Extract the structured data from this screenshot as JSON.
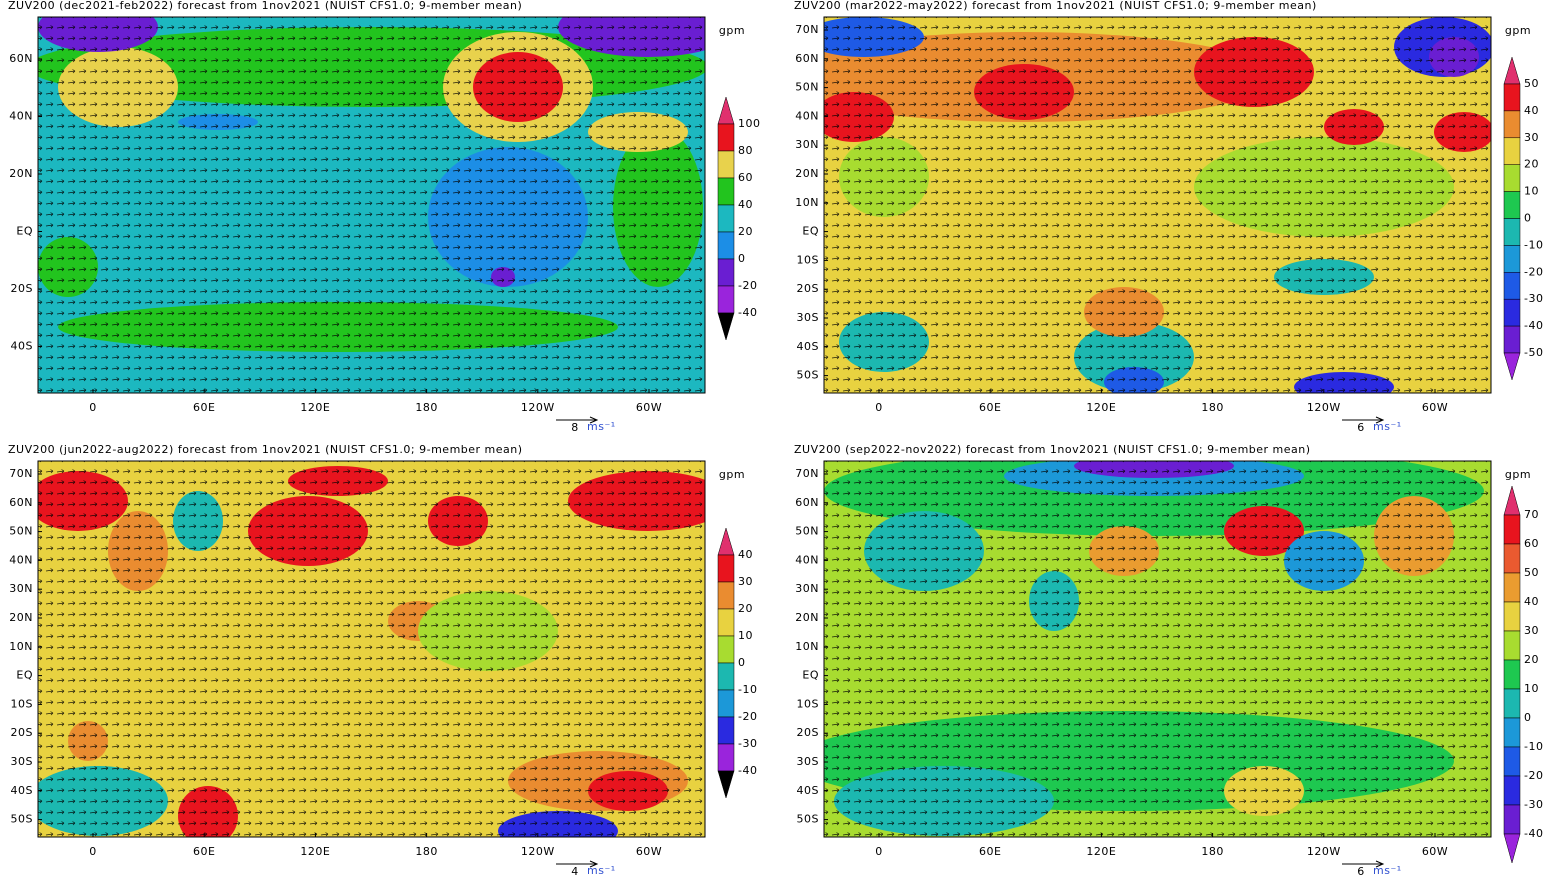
{
  "panels": [
    {
      "title": "ZUV200 (dec2021-feb2022) forecast from 1nov2021 (NUIST CFS1.0; 9-member mean)",
      "lat_labels": [
        "60N",
        "40N",
        "20N",
        "EQ",
        "20S",
        "40S"
      ],
      "lon_labels": [
        "0",
        "60E",
        "120E",
        "180",
        "120W",
        "60W"
      ],
      "unit": "gpm",
      "colorbar": {
        "levels": [
          100,
          80,
          60,
          40,
          20,
          0,
          -20,
          -40
        ],
        "colors": [
          "#e0306e",
          "#e8141e",
          "#e8d24c",
          "#22c41e",
          "#1cb8c0",
          "#1c8ee6",
          "#6a1ed2",
          "#9a24dc"
        ]
      },
      "vector_ref": {
        "value": 8,
        "unit": "ms⁻¹"
      }
    },
    {
      "title": "ZUV200 (mar2022-may2022) forecast from 1nov2021 (NUIST CFS1.0; 9-member mean)",
      "lat_labels": [
        "70N",
        "60N",
        "50N",
        "40N",
        "30N",
        "20N",
        "10N",
        "EQ",
        "10S",
        "20S",
        "30S",
        "40S",
        "50S"
      ],
      "lon_labels": [
        "0",
        "60E",
        "120E",
        "180",
        "120W",
        "60W"
      ],
      "unit": "gpm",
      "colorbar": {
        "levels": [
          50,
          40,
          30,
          20,
          10,
          0,
          -10,
          -20,
          -30,
          -40,
          -50
        ],
        "colors": [
          "#e0306e",
          "#e8141e",
          "#ea8c30",
          "#e8d240",
          "#a8dc30",
          "#1ec850",
          "#1cb8b0",
          "#1c98d8",
          "#1e5ae6",
          "#2a2ae0",
          "#6a1ed2",
          "#9a24dc"
        ]
      },
      "vector_ref": {
        "value": 6,
        "unit": "ms⁻¹"
      }
    },
    {
      "title": "ZUV200 (jun2022-aug2022) forecast from 1nov2021 (NUIST CFS1.0; 9-member mean)",
      "lat_labels": [
        "70N",
        "60N",
        "50N",
        "40N",
        "30N",
        "20N",
        "10N",
        "EQ",
        "10S",
        "20S",
        "30S",
        "40S",
        "50S"
      ],
      "lon_labels": [
        "0",
        "60E",
        "120E",
        "180",
        "120W",
        "60W"
      ],
      "unit": "gpm",
      "colorbar": {
        "levels": [
          40,
          30,
          20,
          10,
          0,
          -10,
          -20,
          -30,
          -40
        ],
        "colors": [
          "#e0306e",
          "#e8141e",
          "#ea8c30",
          "#e8d240",
          "#a8dc30",
          "#1cb8b0",
          "#1c98d8",
          "#2a2ae0",
          "#9a24dc"
        ]
      },
      "vector_ref": {
        "value": 4,
        "unit": "ms⁻¹"
      }
    },
    {
      "title": "ZUV200 (sep2022-nov2022) forecast from 1nov2021 (NUIST CFS1.0; 9-member mean)",
      "lat_labels": [
        "70N",
        "60N",
        "50N",
        "40N",
        "30N",
        "20N",
        "10N",
        "EQ",
        "10S",
        "20S",
        "30S",
        "40S",
        "50S"
      ],
      "lon_labels": [
        "0",
        "60E",
        "120E",
        "180",
        "120W",
        "60W"
      ],
      "unit": "gpm",
      "colorbar": {
        "levels": [
          70,
          60,
          50,
          40,
          30,
          20,
          10,
          0,
          -10,
          -20,
          -30,
          -40
        ],
        "colors": [
          "#e0306e",
          "#e8141e",
          "#ea5a30",
          "#ea9c30",
          "#e8d240",
          "#a8dc30",
          "#1ec850",
          "#1cb8b0",
          "#1c98d8",
          "#1e5ae6",
          "#2a2ae0",
          "#6a1ed2",
          "#9a24dc"
        ]
      },
      "vector_ref": {
        "value": 6,
        "unit": "ms⁻¹"
      }
    }
  ]
}
